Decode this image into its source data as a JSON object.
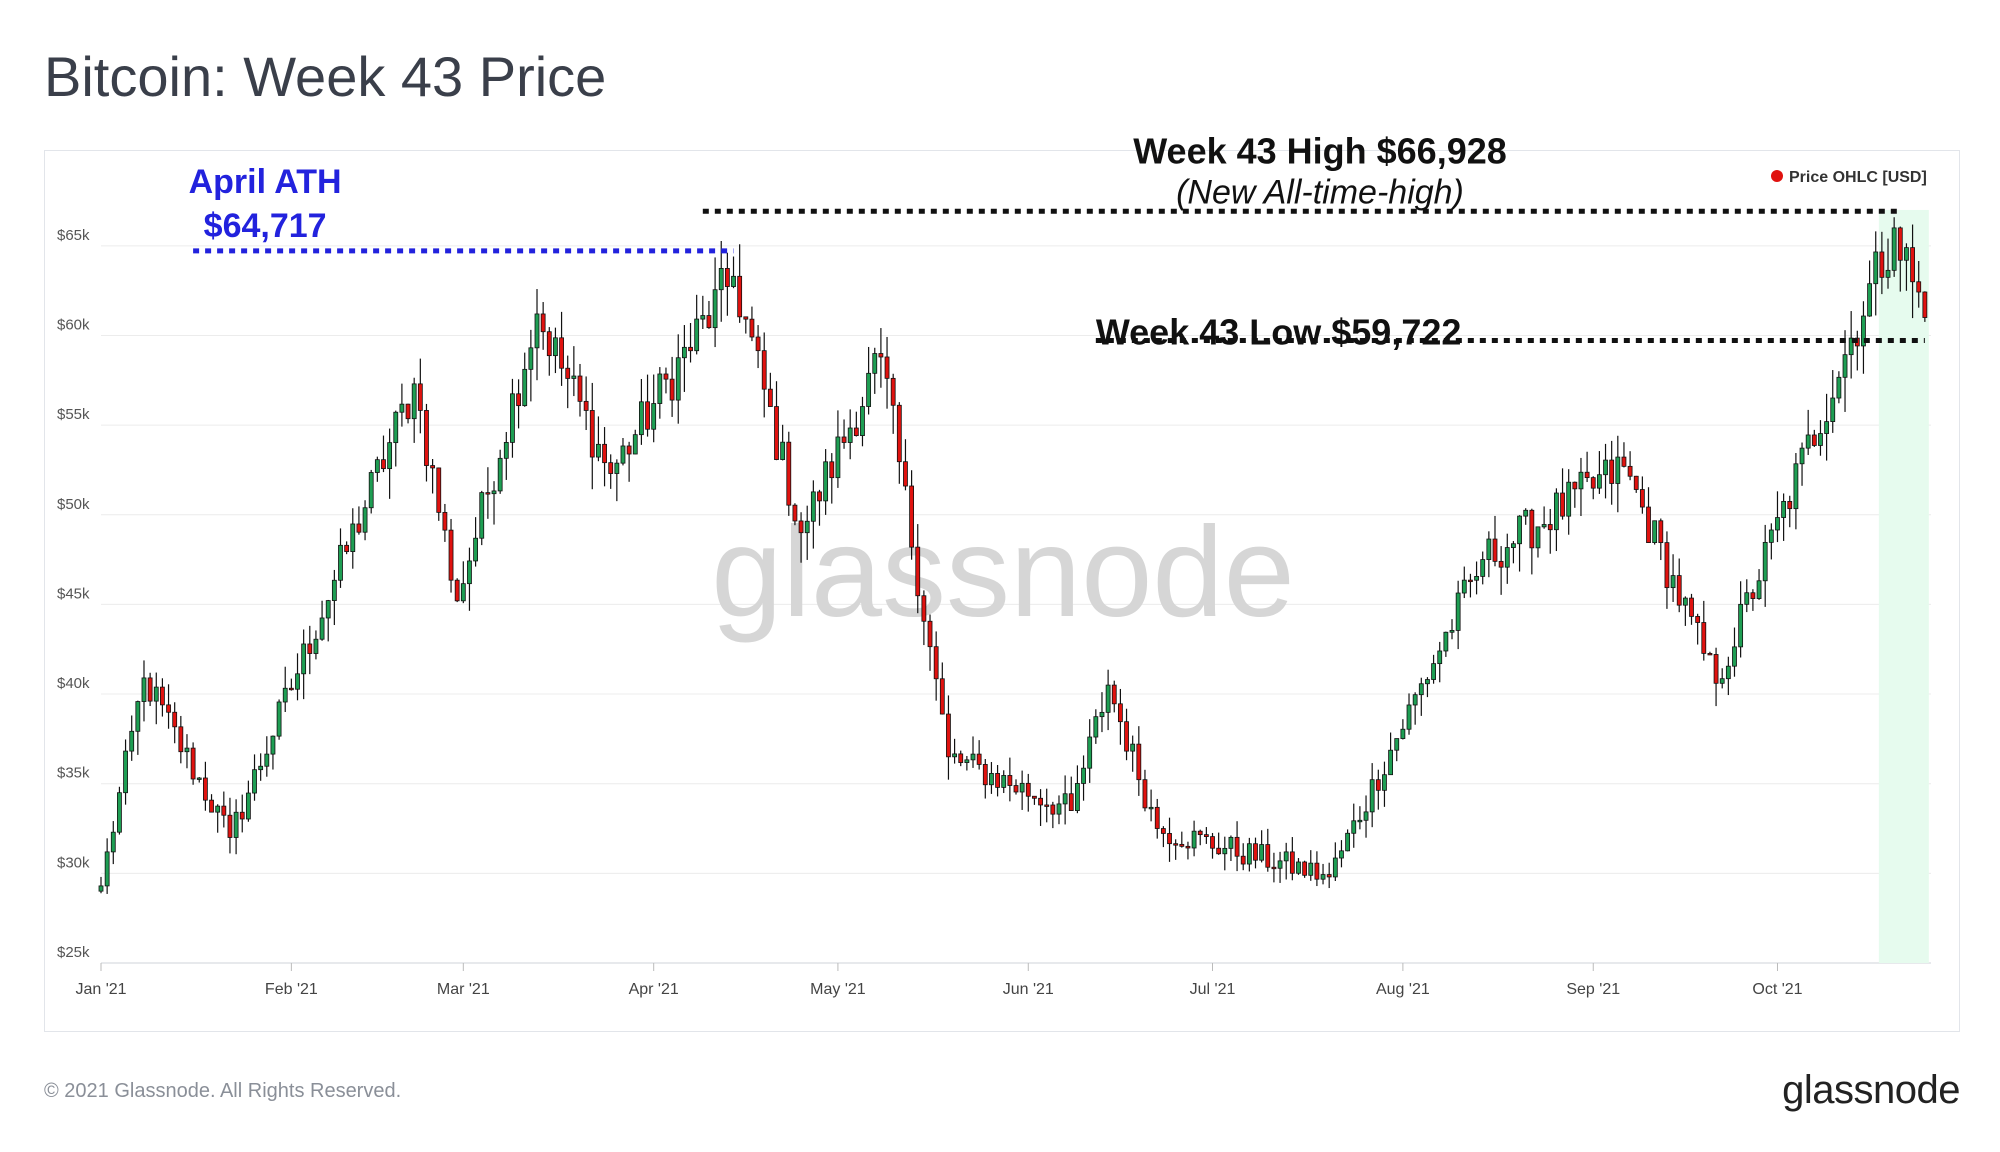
{
  "title": "Bitcoin: Week 43 Price",
  "footer": {
    "copyright": "© 2021 Glassnode. All Rights Reserved.",
    "brand": "glassnode"
  },
  "watermark": "glassnode",
  "chart_data": {
    "type": "candlestick",
    "title": "Bitcoin: Week 43 Price",
    "legend": {
      "label": "Price OHLC [USD]",
      "color": "#e0120f",
      "placement": "top-right"
    },
    "ylim": [
      25000,
      67500
    ],
    "yticks": [
      25000,
      30000,
      35000,
      40000,
      45000,
      50000,
      55000,
      60000,
      65000
    ],
    "ytick_labels": [
      "$25k",
      "$30k",
      "$35k",
      "$40k",
      "$45k",
      "$50k",
      "$55k",
      "$60k",
      "$65k"
    ],
    "xlim": [
      "2021-01-01",
      "2021-10-26"
    ],
    "xticks": [
      "2021-01-01",
      "2021-02-01",
      "2021-03-01",
      "2021-04-01",
      "2021-05-01",
      "2021-06-01",
      "2021-07-01",
      "2021-08-01",
      "2021-09-01",
      "2021-10-01"
    ],
    "xtick_labels": [
      "Jan '21",
      "Feb '21",
      "Mar '21",
      "Apr '21",
      "May '21",
      "Jun '21",
      "Jul '21",
      "Aug '21",
      "Sep '21",
      "Oct '21"
    ],
    "grid": "horizontal",
    "colors": {
      "up": "#1e9e53",
      "down": "#e0120f",
      "highlight": "#e6fbee",
      "ath_line": "#2222dd",
      "week_lines": "#111111"
    },
    "highlight_range": [
      "2021-10-18",
      "2021-10-25"
    ],
    "annotations": {
      "april_ath": {
        "label_line1": "April ATH",
        "label_line2": "$64,717",
        "value": 64717,
        "from": "2021-01-16",
        "to": "2021-04-14"
      },
      "week43_high": {
        "label": "Week 43 High $66,928",
        "sublabel": "(New All-time-high)",
        "value": 66928,
        "from": "2021-04-09",
        "to": "2021-10-21"
      },
      "week43_low": {
        "label": "Week 43 Low $59,722",
        "value": 59722,
        "from": "2021-06-12",
        "to": "2021-10-25"
      }
    },
    "key_points": [
      {
        "date": "2021-01-01",
        "close": 29300
      },
      {
        "date": "2021-01-08",
        "close": 40900
      },
      {
        "date": "2021-01-22",
        "close": 32000
      },
      {
        "date": "2021-02-21",
        "close": 57300
      },
      {
        "date": "2021-02-28",
        "close": 45200
      },
      {
        "date": "2021-03-13",
        "close": 61200
      },
      {
        "date": "2021-03-25",
        "close": 52300
      },
      {
        "date": "2021-04-14",
        "close": 63300
      },
      {
        "date": "2021-04-25",
        "close": 49000
      },
      {
        "date": "2021-05-08",
        "close": 58800
      },
      {
        "date": "2021-05-19",
        "close": 36500
      },
      {
        "date": "2021-06-08",
        "close": 33500
      },
      {
        "date": "2021-06-14",
        "close": 40500
      },
      {
        "date": "2021-06-22",
        "close": 32500
      },
      {
        "date": "2021-07-20",
        "close": 29800
      },
      {
        "date": "2021-08-14",
        "close": 47500
      },
      {
        "date": "2021-09-06",
        "close": 52700
      },
      {
        "date": "2021-09-21",
        "close": 40600
      },
      {
        "date": "2021-10-20",
        "close": 66000
      },
      {
        "date": "2021-10-25",
        "close": 61000
      }
    ]
  }
}
